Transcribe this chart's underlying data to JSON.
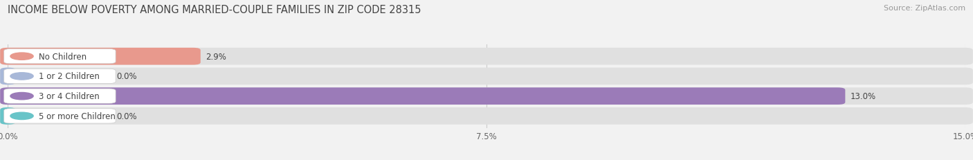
{
  "title": "INCOME BELOW POVERTY AMONG MARRIED-COUPLE FAMILIES IN ZIP CODE 28315",
  "source": "Source: ZipAtlas.com",
  "categories": [
    "No Children",
    "1 or 2 Children",
    "3 or 4 Children",
    "5 or more Children"
  ],
  "values": [
    2.9,
    0.0,
    13.0,
    0.0
  ],
  "bar_colors": [
    "#e8998d",
    "#a8b8d8",
    "#9b7bb8",
    "#68c4c8"
  ],
  "xlim": [
    0,
    15.0
  ],
  "xticks": [
    0.0,
    7.5,
    15.0
  ],
  "xticklabels": [
    "0.0%",
    "7.5%",
    "15.0%"
  ],
  "background_color": "#f2f2f2",
  "bar_bg_color": "#e0e0e0",
  "label_bg_color": "#ffffff",
  "title_fontsize": 10.5,
  "source_fontsize": 8,
  "label_fontsize": 8.5,
  "value_fontsize": 8.5,
  "tick_fontsize": 8.5
}
